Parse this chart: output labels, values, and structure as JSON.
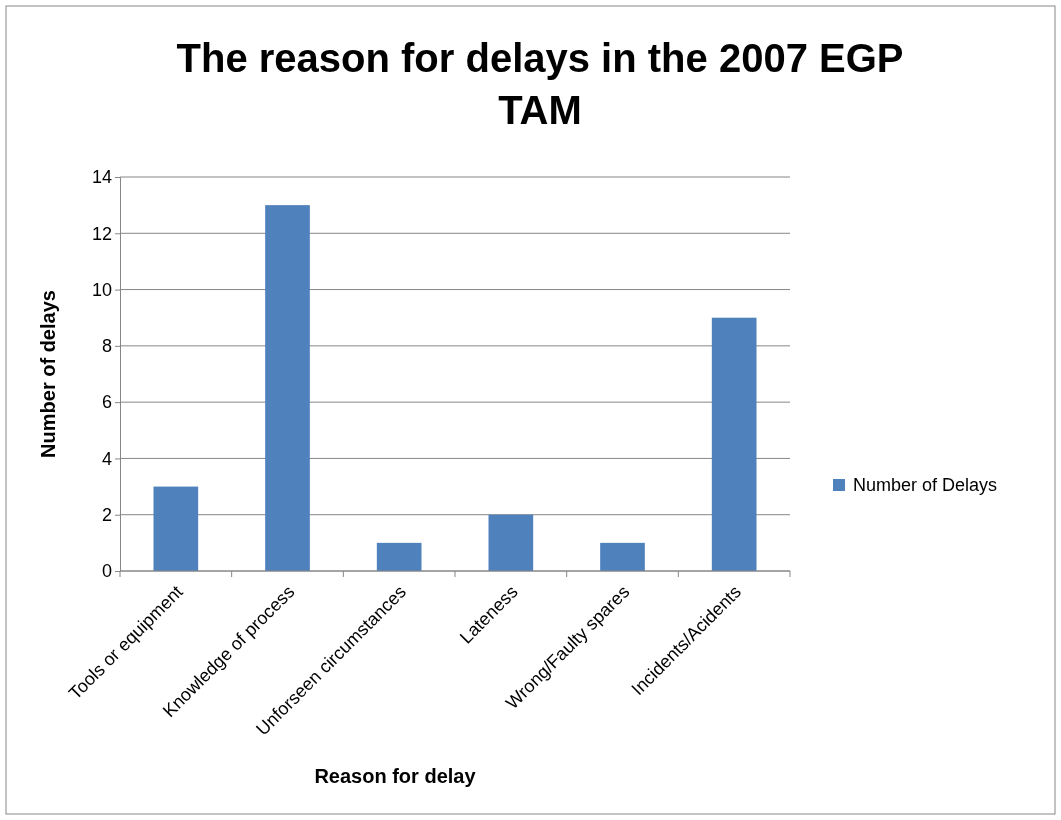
{
  "chart_data": {
    "type": "bar",
    "title": "The reason for delays in the 2007 EGP TAM",
    "xlabel": "Reason for delay",
    "ylabel": "Number of delays",
    "categories": [
      "Tools or equipment",
      "Knowledge of process",
      "Unforseen circumstances",
      "Lateness",
      "Wrong/Faulty spares",
      "Incidents/Acidents"
    ],
    "series": [
      {
        "name": "Number of Delays",
        "color": "#4f81bd",
        "values": [
          3,
          13,
          1,
          2,
          1,
          9
        ]
      }
    ],
    "ylim": [
      0,
      14
    ],
    "yticks": [
      0,
      2,
      4,
      6,
      8,
      10,
      12,
      14
    ],
    "grid": "y",
    "legend": "right"
  }
}
